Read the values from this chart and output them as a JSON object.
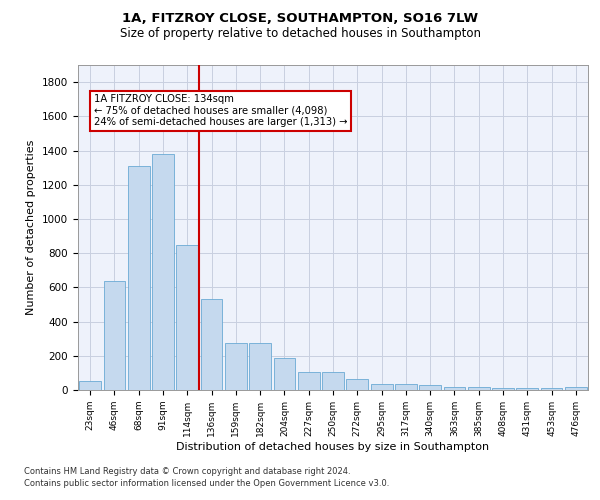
{
  "title1": "1A, FITZROY CLOSE, SOUTHAMPTON, SO16 7LW",
  "title2": "Size of property relative to detached houses in Southampton",
  "xlabel": "Distribution of detached houses by size in Southampton",
  "ylabel": "Number of detached properties",
  "categories": [
    "23sqm",
    "46sqm",
    "68sqm",
    "91sqm",
    "114sqm",
    "136sqm",
    "159sqm",
    "182sqm",
    "204sqm",
    "227sqm",
    "250sqm",
    "272sqm",
    "295sqm",
    "317sqm",
    "340sqm",
    "363sqm",
    "385sqm",
    "408sqm",
    "431sqm",
    "453sqm",
    "476sqm"
  ],
  "values": [
    50,
    640,
    1310,
    1380,
    850,
    530,
    275,
    275,
    185,
    105,
    105,
    62,
    38,
    38,
    30,
    20,
    20,
    10,
    10,
    10,
    15
  ],
  "bar_color": "#c5d9ee",
  "bar_edge_color": "#6aaad4",
  "vline_color": "#cc0000",
  "vline_x": 4.5,
  "annotation_line1": "1A FITZROY CLOSE: 134sqm",
  "annotation_line2": "← 75% of detached houses are smaller (4,098)",
  "annotation_line3": "24% of semi-detached houses are larger (1,313) →",
  "annotation_box_color": "#cc0000",
  "ylim": [
    0,
    1900
  ],
  "yticks": [
    0,
    200,
    400,
    600,
    800,
    1000,
    1200,
    1400,
    1600,
    1800
  ],
  "footer1": "Contains HM Land Registry data © Crown copyright and database right 2024.",
  "footer2": "Contains public sector information licensed under the Open Government Licence v3.0.",
  "bg_color": "#eef2fb",
  "grid_color": "#c8cfe0"
}
